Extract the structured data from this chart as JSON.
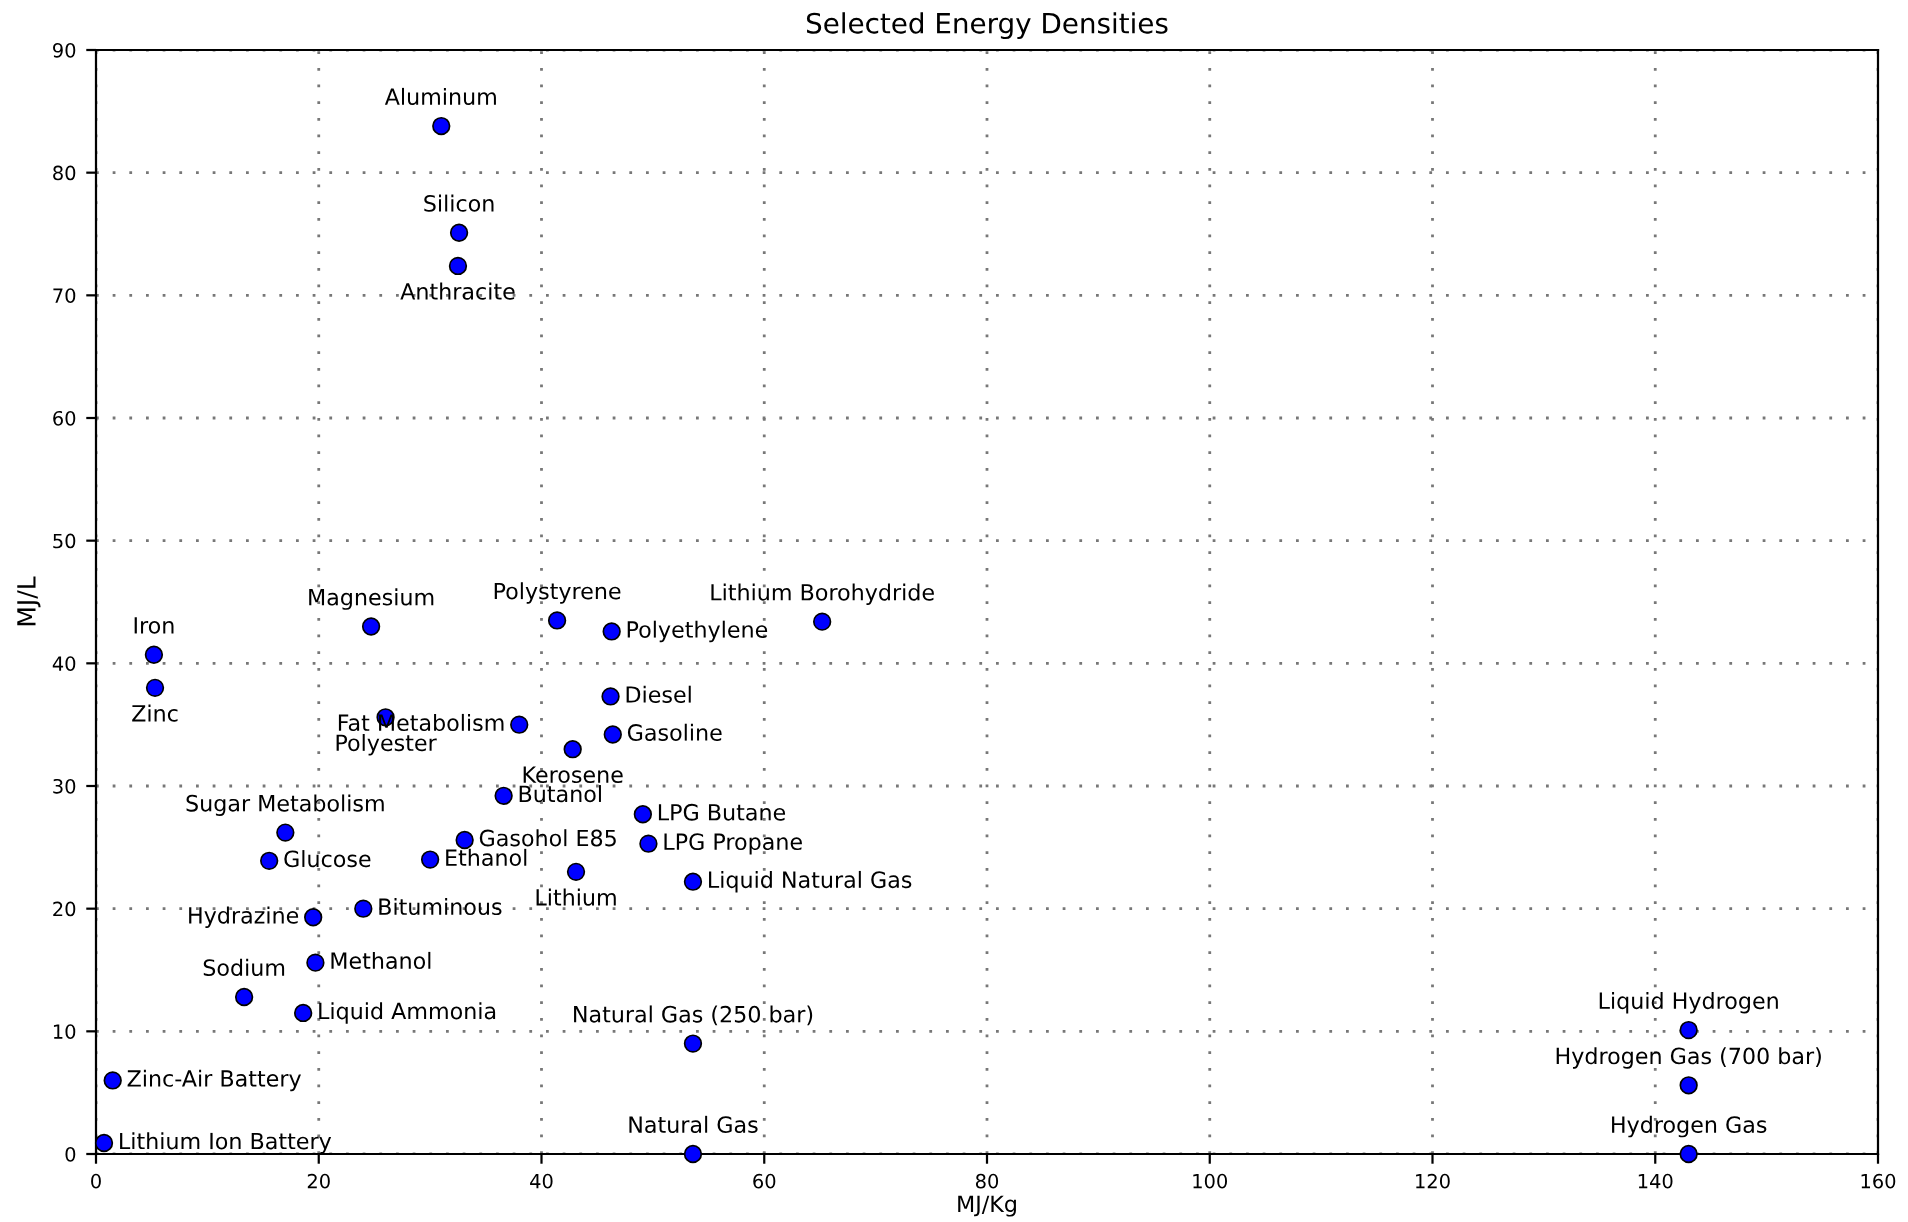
{
  "chart_data": {
    "type": "scatter",
    "title": "Selected Energy Densities",
    "xlabel": "MJ/Kg",
    "ylabel": "MJ/L",
    "xlim": [
      0,
      160
    ],
    "ylim": [
      0,
      90
    ],
    "xticks": [
      0,
      20,
      40,
      60,
      80,
      100,
      120,
      140,
      160
    ],
    "yticks": [
      0,
      10,
      20,
      30,
      40,
      50,
      60,
      70,
      80,
      90
    ],
    "grid": true,
    "marker": "circle",
    "series": [
      {
        "color": "#0000ff",
        "x": [
          31,
          32.6,
          32.5,
          24.7,
          41.4,
          46.3,
          65.2,
          5.2,
          5.3,
          26,
          38,
          46.2,
          46.4,
          42.8,
          36.6,
          17,
          33.1,
          49.1,
          49.6,
          15.55,
          30,
          43.1,
          53.6,
          19.5,
          24,
          19.7,
          13.3,
          18.6,
          53.6,
          1.5,
          0.72,
          53.6,
          143,
          143,
          143
        ],
        "values": [
          83.8,
          75.1,
          72.4,
          43,
          43.5,
          42.6,
          43.4,
          40.7,
          38,
          35.6,
          35,
          37.3,
          34.2,
          33,
          29.2,
          26.2,
          25.6,
          27.7,
          25.3,
          23.9,
          24,
          23,
          22.2,
          19.3,
          20,
          15.6,
          12.8,
          11.5,
          9,
          6,
          0.9,
          0,
          10.1,
          5.6,
          0
        ]
      }
    ],
    "annotations": [
      {
        "text": "Aluminum",
        "x": 31,
        "y": 83.8
      },
      {
        "text": "Silicon",
        "x": 32.6,
        "y": 75.1
      },
      {
        "text": "Anthracite",
        "x": 32.5,
        "y": 72.4
      },
      {
        "text": "Magnesium",
        "x": 24.7,
        "y": 43
      },
      {
        "text": "Polystyrene",
        "x": 41.4,
        "y": 43.5
      },
      {
        "text": "Polyethylene",
        "x": 46.3,
        "y": 42.6
      },
      {
        "text": "Lithium Borohydride",
        "x": 65.2,
        "y": 43.4
      },
      {
        "text": "Iron",
        "x": 5.2,
        "y": 40.7
      },
      {
        "text": "Zinc",
        "x": 5.3,
        "y": 38
      },
      {
        "text": "Polyester",
        "x": 26,
        "y": 35.6
      },
      {
        "text": "Fat Metabolism",
        "x": 38,
        "y": 35
      },
      {
        "text": "Diesel",
        "x": 46.2,
        "y": 37.3
      },
      {
        "text": "Gasoline",
        "x": 46.4,
        "y": 34.2
      },
      {
        "text": "Kerosene",
        "x": 42.8,
        "y": 33
      },
      {
        "text": "Butanol",
        "x": 36.6,
        "y": 29.2
      },
      {
        "text": "Sugar Metabolism",
        "x": 17,
        "y": 26.2
      },
      {
        "text": "Gasohol E85",
        "x": 33.1,
        "y": 25.6
      },
      {
        "text": "LPG Butane",
        "x": 49.1,
        "y": 27.7
      },
      {
        "text": "LPG Propane",
        "x": 49.6,
        "y": 25.3
      },
      {
        "text": "Glucose",
        "x": 15.55,
        "y": 23.9
      },
      {
        "text": "Ethanol",
        "x": 30,
        "y": 24
      },
      {
        "text": "Lithium",
        "x": 43.1,
        "y": 23
      },
      {
        "text": "Liquid Natural Gas",
        "x": 53.6,
        "y": 22.2
      },
      {
        "text": "Hydrazine",
        "x": 19.5,
        "y": 19.3
      },
      {
        "text": "Bituminous",
        "x": 24,
        "y": 20
      },
      {
        "text": "Methanol",
        "x": 19.7,
        "y": 15.6
      },
      {
        "text": "Sodium",
        "x": 13.3,
        "y": 12.8
      },
      {
        "text": "Liquid Ammonia",
        "x": 18.6,
        "y": 11.5
      },
      {
        "text": "Natural Gas (250 bar)",
        "x": 53.6,
        "y": 9
      },
      {
        "text": "Zinc-Air Battery",
        "x": 1.5,
        "y": 6
      },
      {
        "text": "Lithium Ion Battery",
        "x": 0.72,
        "y": 0.9
      },
      {
        "text": "Natural Gas",
        "x": 53.6,
        "y": 0
      },
      {
        "text": "Liquid Hydrogen",
        "x": 143,
        "y": 10.1
      },
      {
        "text": "Hydrogen Gas (700 bar)",
        "x": 143,
        "y": 5.6
      },
      {
        "text": "Hydrogen Gas",
        "x": 143,
        "y": 0
      }
    ]
  }
}
